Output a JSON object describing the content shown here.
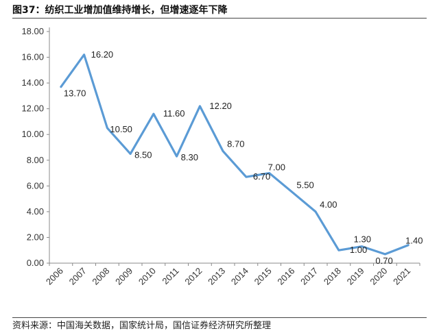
{
  "title": "图37：纺织工业增加值维持增长，但增速逐年下降",
  "source": "资料来源：中国海关数据，国家统计局，国信证券经济研究所整理",
  "chart_data": {
    "type": "line",
    "title": "图37：纺织工业增加值维持增长，但增速逐年下降",
    "xlabel": "",
    "ylabel": "",
    "x": [
      "2006",
      "2007",
      "2008",
      "2009",
      "2010",
      "2011",
      "2012",
      "2013",
      "2014",
      "2015",
      "2016",
      "2017",
      "2018",
      "2019",
      "2020",
      "2021"
    ],
    "series": [
      {
        "values": [
          13.7,
          16.2,
          10.5,
          8.5,
          11.6,
          8.3,
          12.2,
          8.7,
          6.7,
          7.0,
          5.5,
          4.0,
          1.0,
          1.3,
          0.7,
          1.4
        ],
        "labels": [
          "13.70",
          "16.20",
          "10.50",
          "8.50",
          "11.60",
          "8.30",
          "12.20",
          "8.70",
          "6.70",
          "7.00",
          "5.50",
          "4.00",
          "1.00",
          "1.30",
          "0.70",
          "1.40"
        ],
        "color": "#5b9bd5"
      }
    ],
    "yticks": [
      "0.00",
      "2.00",
      "4.00",
      "6.00",
      "8.00",
      "10.00",
      "12.00",
      "14.00",
      "16.00",
      "18.00"
    ],
    "ylim": [
      0,
      18
    ],
    "grid": false,
    "legend": "none"
  }
}
